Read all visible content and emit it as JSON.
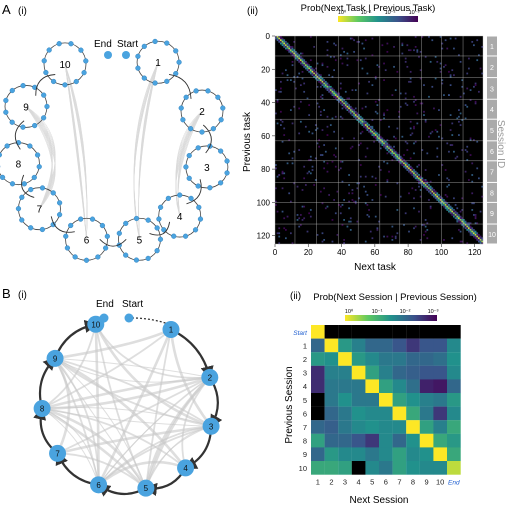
{
  "panelA": {
    "label": "A",
    "left_sub": "(i)",
    "right_sub": "(ii)",
    "sessions": [
      "1",
      "2",
      "3",
      "4",
      "5",
      "6",
      "7",
      "8",
      "9",
      "10"
    ],
    "start_label": "Start",
    "end_label": "End",
    "heatmap": {
      "title": "Prob(Next Task | Previous Task)",
      "colorbar_ticks": [
        "10⁰",
        "10⁻¹",
        "10⁻²",
        "10⁻³"
      ],
      "xlabel": "Next task",
      "ylabel": "Previous task",
      "x_ticks": [
        "0",
        "20",
        "40",
        "60",
        "80",
        "100",
        "120"
      ],
      "y_ticks": [
        "0",
        "20",
        "40",
        "60",
        "80",
        "100",
        "120"
      ],
      "side_label": "Session ID",
      "session_ids": [
        "1",
        "2",
        "3",
        "4",
        "5",
        "6",
        "7",
        "8",
        "9",
        "10"
      ]
    }
  },
  "panelB": {
    "label": "B",
    "left_sub": "(i)",
    "right_sub": "(ii)",
    "sessions": [
      "1",
      "2",
      "3",
      "4",
      "5",
      "6",
      "7",
      "8",
      "9",
      "10"
    ],
    "start_label": "Start",
    "end_label": "End",
    "heatmap": {
      "title": "Prob(Next Session | Previous Session)",
      "colorbar_ticks": [
        "10⁰",
        "10⁻¹",
        "10⁻²",
        "10⁻³"
      ],
      "xlabel": "Next Session",
      "ylabel": "Previous Session",
      "row_labels": [
        "Start",
        "1",
        "2",
        "3",
        "4",
        "5",
        "6",
        "7",
        "8",
        "9",
        "10"
      ],
      "col_labels": [
        "1",
        "2",
        "3",
        "4",
        "5",
        "6",
        "7",
        "8",
        "9",
        "10",
        "End"
      ]
    }
  },
  "chart_data": [
    {
      "type": "heatmap",
      "title": "Prob(Next Task | Previous Task)",
      "xlabel": "Next task",
      "ylabel": "Previous task",
      "xlim": [
        0,
        125
      ],
      "ylim": [
        0,
        125
      ],
      "scale": "log",
      "session_boundaries": [
        0,
        12,
        25,
        38,
        50,
        63,
        75,
        88,
        100,
        113,
        125
      ],
      "note_values": "near-diagonal high probability (yellow), sparse off-diagonal low probability"
    },
    {
      "type": "heatmap",
      "title": "Prob(Next Session | Previous Session)",
      "xlabel": "Next Session",
      "ylabel": "Previous Session",
      "scale": "log",
      "rows": [
        "Start",
        "1",
        "2",
        "3",
        "4",
        "5",
        "6",
        "7",
        "8",
        "9",
        "10"
      ],
      "cols": [
        "1",
        "2",
        "3",
        "4",
        "5",
        "6",
        "7",
        "8",
        "9",
        "10",
        "End"
      ],
      "level_matrix": [
        [
          0,
          -9,
          -9,
          -9,
          -9,
          -9,
          -9,
          -9,
          -9,
          -9,
          -9
        ],
        [
          -2,
          0,
          -1.4,
          -1.7,
          -2,
          -2,
          -2.2,
          -2.5,
          -2.2,
          -2.2,
          -1.6
        ],
        [
          -1.4,
          -1.5,
          0,
          -1.4,
          -1.6,
          -1.8,
          -1.8,
          -2,
          -2,
          -1.9,
          -1.5
        ],
        [
          -2.6,
          -1.7,
          -1.7,
          0,
          -1.3,
          -1.7,
          -2,
          -2.1,
          -2.2,
          -2.2,
          -1.6
        ],
        [
          -2.6,
          -1.8,
          -1.8,
          -1.8,
          0,
          -1.3,
          -1.6,
          -1.9,
          -2.7,
          -2.8,
          -2
        ],
        [
          -9,
          -1.8,
          -1.5,
          -1.8,
          -1.8,
          0,
          -1.3,
          -1.5,
          -1.7,
          -1.8,
          -1.4
        ],
        [
          -9,
          -2,
          -1.8,
          -1.5,
          -1.6,
          -1.6,
          0,
          -1.2,
          -1.8,
          -2.5,
          -1.6
        ],
        [
          -2,
          -2.1,
          -1.8,
          -1.6,
          -1.5,
          -1.6,
          -1.6,
          0,
          -1.3,
          -1.7,
          -1.2
        ],
        [
          -1.3,
          -2,
          -2,
          -2.2,
          -2.5,
          -1.6,
          -2,
          -1.5,
          0,
          -1.2,
          -1.4
        ],
        [
          -2,
          -1.4,
          -1.6,
          -1.6,
          -1.8,
          -1.6,
          -1.3,
          -1.6,
          -1.5,
          0,
          -1.2
        ],
        [
          -1.2,
          -1.2,
          -1.3,
          -9,
          -1.6,
          -1.8,
          -1.3,
          -1.5,
          -1.6,
          -1.6,
          -0.3
        ]
      ]
    }
  ]
}
